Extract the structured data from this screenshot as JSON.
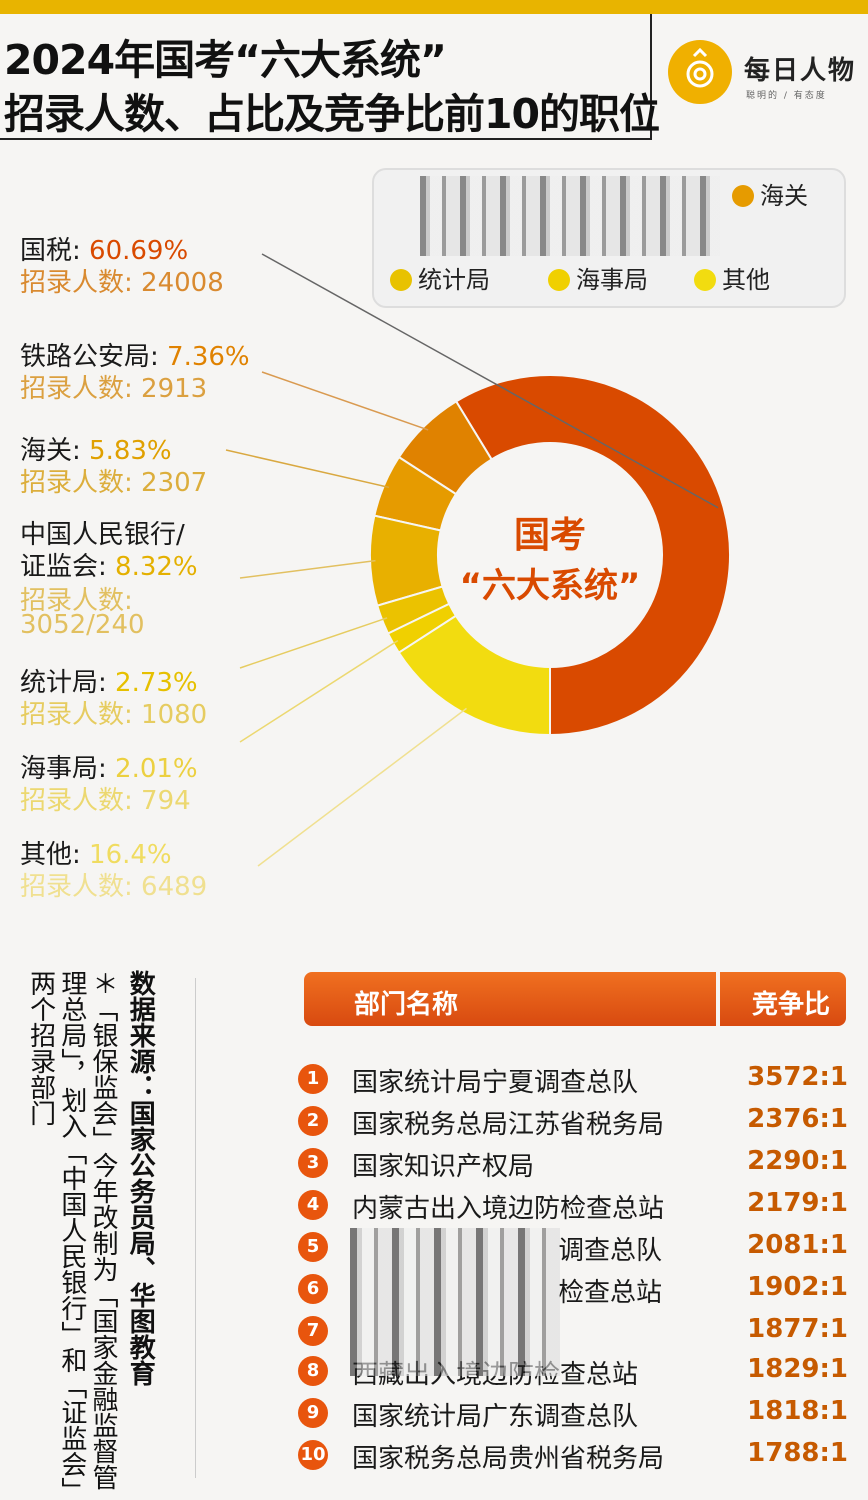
{
  "header": {
    "title_line1": "2024年国考“六大系统”",
    "title_line2": "招录人数、占比及竞争比前10的职位",
    "logo_name": "每日人物",
    "logo_sub": "聪明的 / 有态度",
    "accent": "#e8b400"
  },
  "legend": {
    "items": [
      {
        "label": "海关",
        "color": "#e69b00"
      },
      {
        "label": "统计局",
        "color": "#e8c200"
      },
      {
        "label": "海事局",
        "color": "#f0d000"
      },
      {
        "label": "其他",
        "color": "#f2dc10"
      }
    ]
  },
  "labels": [
    {
      "name": "国税: ",
      "pct": "60.69%",
      "sub": "招录人数: 24008"
    },
    {
      "name": "铁路公安局: ",
      "pct": "7.36%",
      "sub": "招录人数: 2913"
    },
    {
      "name": "海关: ",
      "pct": "5.83%",
      "sub": "招录人数: 2307"
    },
    {
      "name": "中国人民银行/",
      "name2": "证监会: ",
      "pct": "8.32%",
      "sub": "招录人数:",
      "sub2": "3052/240"
    },
    {
      "name": "统计局: ",
      "pct": "2.73%",
      "sub": "招录人数: 1080"
    },
    {
      "name": "海事局: ",
      "pct": "2.01%",
      "sub": "招录人数: 794"
    },
    {
      "name": "其他: ",
      "pct": "16.4%",
      "sub": "招录人数: 6489"
    }
  ],
  "center": {
    "line1": "国考",
    "line2": "“六大系统”"
  },
  "chart_data": {
    "type": "pie",
    "title": "2024年国考“六大系统”招录人数、占比及竞争比前10的职位",
    "categories": [
      "国税",
      "铁路公安局",
      "海关",
      "中国人民银行/证监会",
      "统计局",
      "海事局",
      "其他"
    ],
    "values": [
      60.69,
      7.36,
      5.83,
      8.32,
      2.73,
      2.01,
      16.4
    ],
    "counts": [
      "24008",
      "2913",
      "2307",
      "3052/240",
      "1080",
      "794",
      "6489"
    ],
    "colors": [
      "#d94a00",
      "#e08200",
      "#e69b00",
      "#e8b000",
      "#ebc200",
      "#f0d000",
      "#f2dc10"
    ]
  },
  "source": {
    "text": "数据来源：国家公务员局、华图教育",
    "note": "＊「银保监会」今年改制为「国家金融监督管理总局」，划入「中国人民银行」和「证监会」两个招录部门"
  },
  "table": {
    "col1": "部门名称",
    "col2": "竞争比",
    "rows": [
      {
        "rank": "1",
        "name": "国家统计局宁夏调查总队",
        "ratio": "3572:1"
      },
      {
        "rank": "2",
        "name": "国家税务总局江苏省税务局",
        "ratio": "2376:1"
      },
      {
        "rank": "3",
        "name": "国家知识产权局",
        "ratio": "2290:1"
      },
      {
        "rank": "4",
        "name": "内蒙古出入境边防检查总站",
        "ratio": "2179:1"
      },
      {
        "rank": "5",
        "name": "调查总队",
        "ratio": "2081:1"
      },
      {
        "rank": "6",
        "name": "检查总站",
        "ratio": "1902:1"
      },
      {
        "rank": "7",
        "name": "",
        "ratio": "1877:1"
      },
      {
        "rank": "8",
        "name": "西藏出入境边防检查总站",
        "ratio": "1829:1"
      },
      {
        "rank": "9",
        "name": "国家统计局广东调查总队",
        "ratio": "1818:1"
      },
      {
        "rank": "10",
        "name": "国家税务总局贵州省税务局",
        "ratio": "1788:1"
      }
    ]
  }
}
